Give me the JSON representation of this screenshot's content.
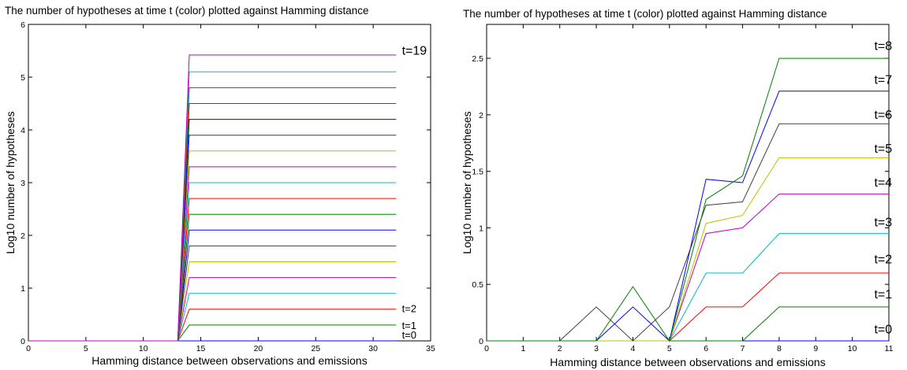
{
  "chart_data": [
    {
      "type": "line",
      "title": "The number of hypotheses at time t (color) plotted against Hamming distance",
      "xlabel": "Hamming distance between observations and emissions",
      "ylabel": "Log10 number of hypotheses",
      "xlim": [
        0,
        35
      ],
      "ylim": [
        0,
        6
      ],
      "xticks": [
        0,
        5,
        10,
        15,
        20,
        25,
        30,
        35
      ],
      "yticks": [
        0,
        1,
        2,
        3,
        4,
        5,
        6
      ],
      "grid": false,
      "legend": "none",
      "series": [
        {
          "color": "#0000ff",
          "x": [
            0,
            13,
            14,
            32
          ],
          "y": [
            0,
            0,
            0,
            0
          ]
        },
        {
          "color": "#008000",
          "x": [
            0,
            13,
            14,
            32
          ],
          "y": [
            0,
            0,
            0.3,
            0.3
          ]
        },
        {
          "color": "#ff0000",
          "x": [
            0,
            13,
            14,
            32
          ],
          "y": [
            0,
            0,
            0.6,
            0.6
          ]
        },
        {
          "color": "#00bfbf",
          "x": [
            0,
            13,
            14,
            32
          ],
          "y": [
            0,
            0,
            0.9,
            0.9
          ]
        },
        {
          "color": "#bf00bf",
          "x": [
            0,
            13,
            14,
            32
          ],
          "y": [
            0,
            0,
            1.2,
            1.2
          ]
        },
        {
          "color": "#bfbf00",
          "x": [
            0,
            13,
            14,
            32
          ],
          "y": [
            0,
            0,
            1.5,
            1.5
          ]
        },
        {
          "color": "#404040",
          "x": [
            0,
            13,
            14,
            32
          ],
          "y": [
            0,
            0,
            1.8,
            1.8
          ]
        },
        {
          "color": "#0000ff",
          "x": [
            0,
            13,
            14,
            32
          ],
          "y": [
            0,
            0,
            2.1,
            2.1
          ]
        },
        {
          "color": "#008000",
          "x": [
            0,
            13,
            14,
            32
          ],
          "y": [
            0,
            0,
            2.4,
            2.4
          ]
        },
        {
          "color": "#ff0000",
          "x": [
            0,
            13,
            14,
            32
          ],
          "y": [
            0,
            0,
            2.7,
            2.7
          ]
        },
        {
          "color": "#00bfbf",
          "x": [
            0,
            13,
            14,
            32
          ],
          "y": [
            0,
            0,
            3.0,
            3.0
          ]
        },
        {
          "color": "#bf00bf",
          "x": [
            0,
            13,
            14,
            32
          ],
          "y": [
            0,
            0,
            3.3,
            3.3
          ]
        },
        {
          "color": "#bfbf00",
          "x": [
            0,
            13,
            14,
            32
          ],
          "y": [
            0,
            0,
            3.6,
            3.6
          ]
        },
        {
          "color": "#404040",
          "x": [
            0,
            13,
            14,
            32
          ],
          "y": [
            0,
            0,
            3.9,
            3.9
          ]
        },
        {
          "color": "#0000ff",
          "x": [
            0,
            13,
            14,
            32
          ],
          "y": [
            0,
            0,
            4.2,
            4.2
          ]
        },
        {
          "color": "#008000",
          "x": [
            0,
            13,
            14,
            32
          ],
          "y": [
            0,
            0,
            4.5,
            4.5
          ]
        },
        {
          "color": "#ff0000",
          "x": [
            0,
            13,
            14,
            32
          ],
          "y": [
            0,
            0,
            4.8,
            4.8
          ]
        },
        {
          "color": "#00bfbf",
          "x": [
            0,
            13,
            14,
            32
          ],
          "y": [
            0,
            0,
            5.1,
            5.1
          ]
        },
        {
          "color": "#bf00bf",
          "x": [
            0,
            13,
            14,
            32
          ],
          "y": [
            0,
            0,
            5.42,
            5.42
          ]
        }
      ],
      "annotations": [
        {
          "text": "t=19",
          "x": 32.5,
          "y": 5.5,
          "size": "large"
        },
        {
          "text": "t=2",
          "x": 32.5,
          "y": 0.62,
          "size": "small"
        },
        {
          "text": "t=1",
          "x": 32.5,
          "y": 0.3,
          "size": "small"
        },
        {
          "text": "t=0",
          "x": 32.5,
          "y": 0.12,
          "size": "small"
        }
      ]
    },
    {
      "type": "line",
      "title": "The number of hypotheses at time t (color) plotted against Hamming distance",
      "xlabel": "Hamming distance between observations and emissions",
      "ylabel": "Log10 number of hypotheses",
      "xlim": [
        0,
        11
      ],
      "ylim": [
        0,
        2.8
      ],
      "xticks": [
        0,
        1,
        2,
        3,
        4,
        5,
        6,
        7,
        8,
        9,
        10,
        11
      ],
      "yticks": [
        0,
        0.5,
        1,
        1.5,
        2,
        2.5
      ],
      "grid": false,
      "legend": "none",
      "series": [
        {
          "color": "#0000ff",
          "x": [
            0,
            1,
            2,
            3,
            4,
            5,
            6,
            7,
            8,
            9,
            10,
            11
          ],
          "y": [
            0,
            0,
            0,
            0,
            0,
            0,
            0,
            0,
            0,
            0,
            0,
            0
          ]
        },
        {
          "color": "#008000",
          "x": [
            0,
            1,
            2,
            3,
            4,
            5,
            6,
            7,
            8,
            9,
            10,
            11
          ],
          "y": [
            0,
            0,
            0,
            0,
            0,
            0,
            0,
            0,
            0.3,
            0.3,
            0.3,
            0.3
          ]
        },
        {
          "color": "#ff0000",
          "x": [
            0,
            1,
            2,
            3,
            4,
            5,
            6,
            7,
            8,
            9,
            10,
            11
          ],
          "y": [
            0,
            0,
            0,
            0,
            0,
            0,
            0.3,
            0.3,
            0.6,
            0.6,
            0.6,
            0.6
          ]
        },
        {
          "color": "#00bfbf",
          "x": [
            0,
            1,
            2,
            3,
            4,
            5,
            6,
            7,
            8,
            9,
            10,
            11
          ],
          "y": [
            0,
            0,
            0,
            0,
            0,
            0,
            0.6,
            0.6,
            0.95,
            0.95,
            0.95,
            0.95
          ]
        },
        {
          "color": "#bf00bf",
          "x": [
            0,
            1,
            2,
            3,
            4,
            5,
            6,
            7,
            8,
            9,
            10,
            11
          ],
          "y": [
            0,
            0,
            0,
            0,
            0,
            0,
            0.95,
            1.0,
            1.3,
            1.3,
            1.3,
            1.3
          ]
        },
        {
          "color": "#bfbf00",
          "x": [
            0,
            1,
            2,
            3,
            4,
            5,
            6,
            7,
            8,
            9,
            10,
            11
          ],
          "y": [
            0,
            0,
            0,
            0,
            0,
            0,
            1.04,
            1.11,
            1.62,
            1.62,
            1.62,
            1.62
          ]
        },
        {
          "color": "#404040",
          "x": [
            0,
            1,
            2,
            3,
            4,
            5,
            6,
            7,
            8,
            9,
            10,
            11
          ],
          "y": [
            0,
            0,
            0,
            0.3,
            0,
            0.3,
            1.2,
            1.23,
            1.92,
            1.92,
            1.92,
            1.92
          ]
        },
        {
          "color": "#0000ff",
          "x": [
            0,
            1,
            2,
            3,
            4,
            5,
            6,
            7,
            8,
            9,
            10,
            11
          ],
          "y": [
            0,
            0,
            0,
            0,
            0.3,
            0,
            1.43,
            1.4,
            2.21,
            2.21,
            2.21,
            2.21
          ]
        },
        {
          "color": "#008000",
          "x": [
            0,
            1,
            2,
            3,
            4,
            5,
            6,
            7,
            8,
            9,
            10,
            11
          ],
          "y": [
            0,
            0,
            0,
            0,
            0.48,
            0,
            1.25,
            1.46,
            2.5,
            2.5,
            2.5,
            2.5
          ]
        }
      ],
      "annotations": [
        {
          "text": "t=8",
          "x": 10.6,
          "y": 2.61
        },
        {
          "text": "t=7",
          "x": 10.6,
          "y": 2.31
        },
        {
          "text": "t=6",
          "x": 10.6,
          "y": 2.0
        },
        {
          "text": "t=5",
          "x": 10.6,
          "y": 1.7
        },
        {
          "text": "t=4",
          "x": 10.6,
          "y": 1.4
        },
        {
          "text": "t=3",
          "x": 10.6,
          "y": 1.05
        },
        {
          "text": "t=2",
          "x": 10.6,
          "y": 0.72
        },
        {
          "text": "t=1",
          "x": 10.6,
          "y": 0.41
        },
        {
          "text": "t=0",
          "x": 10.6,
          "y": 0.1
        }
      ]
    }
  ]
}
